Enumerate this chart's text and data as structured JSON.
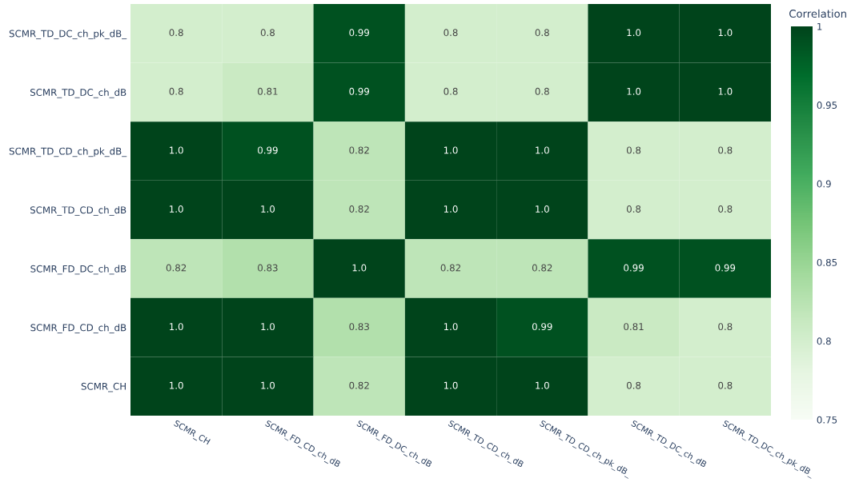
{
  "chart_data": {
    "type": "heatmap",
    "clabel": "Correlation",
    "categories": [
      "SCMR_CH",
      "SCMR_FD_CD_ch_dB",
      "SCMR_FD_DC_ch_dB",
      "SCMR_TD_CD_ch_dB",
      "SCMR_TD_CD_ch_pk_dB_",
      "SCMR_TD_DC_ch_dB",
      "SCMR_TD_DC_ch_pk_dB_"
    ],
    "y_categories": [
      "SCMR_TD_DC_ch_pk_dB_",
      "SCMR_TD_DC_ch_dB",
      "SCMR_TD_CD_ch_pk_dB_",
      "SCMR_TD_CD_ch_dB",
      "SCMR_FD_DC_ch_dB",
      "SCMR_FD_CD_ch_dB",
      "SCMR_CH"
    ],
    "cells": [
      [
        0.8,
        0.8,
        0.99,
        0.8,
        0.8,
        1.0,
        1.0
      ],
      [
        0.8,
        0.81,
        0.99,
        0.8,
        0.8,
        1.0,
        1.0
      ],
      [
        1.0,
        0.99,
        0.82,
        1.0,
        1.0,
        0.8,
        0.8
      ],
      [
        1.0,
        1.0,
        0.82,
        1.0,
        1.0,
        0.8,
        0.8
      ],
      [
        0.82,
        0.83,
        1.0,
        0.82,
        0.82,
        0.99,
        0.99
      ],
      [
        1.0,
        1.0,
        0.83,
        1.0,
        0.99,
        0.81,
        0.8
      ],
      [
        1.0,
        1.0,
        0.82,
        1.0,
        1.0,
        0.8,
        0.8
      ]
    ],
    "cell_labels": [
      [
        "0.8",
        "0.8",
        "0.99",
        "0.8",
        "0.8",
        "1.0",
        "1.0"
      ],
      [
        "0.8",
        "0.81",
        "0.99",
        "0.8",
        "0.8",
        "1.0",
        "1.0"
      ],
      [
        "1.0",
        "0.99",
        "0.82",
        "1.0",
        "1.0",
        "0.8",
        "0.8"
      ],
      [
        "1.0",
        "1.0",
        "0.82",
        "1.0",
        "1.0",
        "0.8",
        "0.8"
      ],
      [
        "0.82",
        "0.83",
        "1.0",
        "0.82",
        "0.82",
        "0.99",
        "0.99"
      ],
      [
        "1.0",
        "1.0",
        "0.83",
        "1.0",
        "0.99",
        "0.81",
        "0.8"
      ],
      [
        "1.0",
        "1.0",
        "0.82",
        "1.0",
        "1.0",
        "0.8",
        "0.8"
      ]
    ],
    "clim": [
      0.75,
      1
    ],
    "cticks": [
      0.75,
      0.8,
      0.85,
      0.9,
      0.95,
      1
    ]
  }
}
